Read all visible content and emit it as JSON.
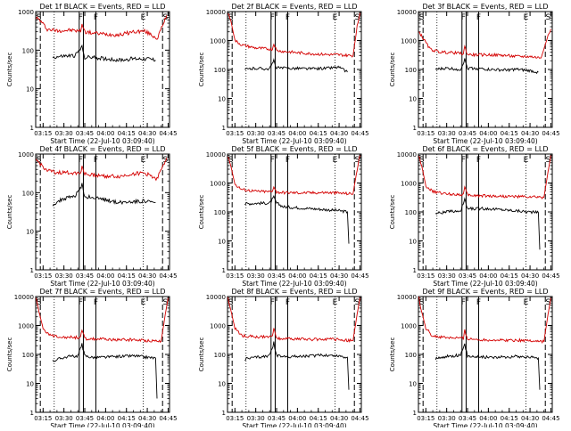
{
  "colors": {
    "events": "#000000",
    "lld": "#d40000",
    "frame": "#000000"
  },
  "chart_data": [
    {
      "type": "line",
      "title": "Det 1f BLACK = Events, RED = LLD",
      "xlabel": "Start Time (22-Jul-10 03:09:40)",
      "ylabel": "Counts/sec",
      "ylim": [
        1,
        1000
      ],
      "yscale": "log",
      "yticks": [
        "1",
        "10",
        "100",
        "1000"
      ],
      "xticks": [
        "03:15",
        "03:30",
        "03:45",
        "04:00",
        "04:15",
        "04:30",
        "04:45"
      ],
      "markers": [
        "S",
        "F",
        "F",
        "E",
        "S"
      ],
      "series": [
        {
          "name": "LLD",
          "x": [
            "03:10",
            "03:13",
            "03:18",
            "03:25",
            "03:35",
            "03:42",
            "03:43",
            "03:45",
            "03:50",
            "04:00",
            "04:10",
            "04:20",
            "04:28",
            "04:33",
            "04:37",
            "04:41",
            "04:44"
          ],
          "y": [
            700,
            580,
            350,
            320,
            330,
            310,
            480,
            300,
            280,
            260,
            250,
            300,
            310,
            250,
            200,
            420,
            800
          ]
        },
        {
          "name": "Events",
          "x": [
            "03:22",
            "03:30",
            "03:38",
            "03:43",
            "03:45",
            "03:50",
            "04:00",
            "04:10",
            "04:20",
            "04:30",
            "04:36"
          ],
          "y": [
            65,
            70,
            72,
            120,
            65,
            65,
            60,
            55,
            60,
            60,
            55
          ]
        }
      ]
    },
    {
      "type": "line",
      "title": "Det 2f BLACK = Events, RED = LLD",
      "xlabel": "Start Time (22-Jul-10 03:09:40)",
      "ylabel": "Counts/sec",
      "ylim": [
        1,
        10000
      ],
      "yscale": "log",
      "yticks": [
        "1",
        "10",
        "100",
        "1000",
        "10000"
      ],
      "xticks": [
        "03:15",
        "03:30",
        "03:45",
        "04:00",
        "04:15",
        "04:30",
        "04:45"
      ],
      "markers": [
        "S",
        "F",
        "F",
        "E",
        "S"
      ],
      "series": [
        {
          "name": "LLD",
          "x": [
            "03:10",
            "03:12",
            "03:15",
            "03:20",
            "03:30",
            "03:42",
            "03:43",
            "03:45",
            "03:50",
            "04:00",
            "04:10",
            "04:20",
            "04:30",
            "04:40",
            "04:43",
            "04:45"
          ],
          "y": [
            9000,
            5000,
            1000,
            700,
            550,
            500,
            800,
            450,
            420,
            380,
            350,
            330,
            320,
            300,
            3000,
            9000
          ]
        },
        {
          "name": "Events",
          "x": [
            "03:22",
            "03:30",
            "03:40",
            "03:43",
            "03:45",
            "03:50",
            "04:00",
            "04:10",
            "04:20",
            "04:30",
            "04:36"
          ],
          "y": [
            100,
            110,
            105,
            200,
            115,
            110,
            110,
            105,
            110,
            120,
            80
          ]
        }
      ]
    },
    {
      "type": "line",
      "title": "Det 3f BLACK = Events, RED = LLD",
      "xlabel": "Start Time (22-Jul-10 03:09:40)",
      "ylabel": "Counts/sec",
      "ylim": [
        1,
        10000
      ],
      "yscale": "log",
      "yticks": [
        "1",
        "10",
        "100",
        "1000",
        "10000"
      ],
      "xticks": [
        "03:15",
        "03:30",
        "03:45",
        "04:00",
        "04:15",
        "04:30",
        "04:45"
      ],
      "markers": [
        "S",
        "F",
        "F",
        "E",
        "S"
      ],
      "series": [
        {
          "name": "LLD",
          "x": [
            "03:10",
            "03:13",
            "03:18",
            "03:25",
            "03:35",
            "03:42",
            "03:43",
            "03:45",
            "03:50",
            "04:00",
            "04:10",
            "04:20",
            "04:30",
            "04:38",
            "04:43",
            "04:45"
          ],
          "y": [
            2000,
            1200,
            500,
            400,
            380,
            350,
            600,
            330,
            320,
            320,
            310,
            280,
            280,
            250,
            1500,
            2500
          ]
        },
        {
          "name": "Events",
          "x": [
            "03:22",
            "03:30",
            "03:40",
            "03:43",
            "03:45",
            "03:50",
            "04:00",
            "04:10",
            "04:20",
            "04:30",
            "04:36"
          ],
          "y": [
            100,
            110,
            100,
            220,
            110,
            110,
            100,
            95,
            100,
            90,
            80
          ]
        }
      ]
    },
    {
      "type": "line",
      "title": "Det 4f BLACK = Events, RED = LLD",
      "xlabel": "Start Time (22-Jul-10 03:09:40)",
      "ylabel": "Counts/sec",
      "ylim": [
        1,
        1000
      ],
      "yscale": "log",
      "yticks": [
        "1",
        "10",
        "100",
        "1000"
      ],
      "xticks": [
        "03:15",
        "03:30",
        "03:45",
        "04:00",
        "04:15",
        "04:30",
        "04:45"
      ],
      "markers": [
        "S",
        "F",
        "F",
        "E",
        "S"
      ],
      "series": [
        {
          "name": "LLD",
          "x": [
            "03:10",
            "03:13",
            "03:18",
            "03:25",
            "03:35",
            "03:42",
            "03:43",
            "03:45",
            "03:50",
            "04:00",
            "04:10",
            "04:20",
            "04:28",
            "04:33",
            "04:37",
            "04:41",
            "04:44"
          ],
          "y": [
            700,
            550,
            370,
            330,
            330,
            320,
            500,
            300,
            290,
            270,
            260,
            310,
            320,
            270,
            230,
            450,
            800
          ]
        },
        {
          "name": "Events",
          "x": [
            "03:22",
            "03:30",
            "03:38",
            "03:43",
            "03:45",
            "03:50",
            "04:00",
            "04:10",
            "04:20",
            "04:30",
            "04:36"
          ],
          "y": [
            50,
            70,
            80,
            160,
            80,
            75,
            65,
            55,
            60,
            60,
            55
          ]
        }
      ]
    },
    {
      "type": "line",
      "title": "Det 5f BLACK = Events, RED = LLD",
      "xlabel": "Start Time (22-Jul-10 03:09:40)",
      "ylabel": "Counts/sec",
      "ylim": [
        1,
        10000
      ],
      "yscale": "log",
      "yticks": [
        "1",
        "10",
        "100",
        "1000",
        "10000"
      ],
      "xticks": [
        "03:15",
        "03:30",
        "03:45",
        "04:00",
        "04:15",
        "04:30",
        "04:45"
      ],
      "markers": [
        "S",
        "F",
        "F",
        "E",
        "S"
      ],
      "series": [
        {
          "name": "LLD",
          "x": [
            "03:10",
            "03:12",
            "03:15",
            "03:20",
            "03:30",
            "03:42",
            "03:43",
            "03:45",
            "03:50",
            "04:00",
            "04:10",
            "04:20",
            "04:30",
            "04:40",
            "04:43",
            "04:45"
          ],
          "y": [
            9000,
            4000,
            900,
            600,
            520,
            500,
            800,
            480,
            470,
            460,
            460,
            470,
            450,
            420,
            3000,
            9000
          ]
        },
        {
          "name": "Events",
          "x": [
            "03:22",
            "03:30",
            "03:40",
            "03:43",
            "03:45",
            "03:50",
            "04:00",
            "04:10",
            "04:20",
            "04:30",
            "04:36",
            "04:37"
          ],
          "y": [
            190,
            200,
            200,
            320,
            200,
            150,
            140,
            130,
            120,
            110,
            100,
            8
          ]
        }
      ]
    },
    {
      "type": "line",
      "title": "Det 6f BLACK = Events, RED = LLD",
      "xlabel": "Start Time (22-Jul-10 03:09:40)",
      "ylabel": "Counts/sec",
      "ylim": [
        1,
        10000
      ],
      "yscale": "log",
      "yticks": [
        "1",
        "10",
        "100",
        "1000",
        "10000"
      ],
      "xticks": [
        "03:15",
        "03:30",
        "03:45",
        "04:00",
        "04:15",
        "04:30",
        "04:45"
      ],
      "markers": [
        "S",
        "F",
        "F",
        "E",
        "S"
      ],
      "series": [
        {
          "name": "LLD",
          "x": [
            "03:10",
            "03:12",
            "03:15",
            "03:20",
            "03:30",
            "03:42",
            "03:43",
            "03:45",
            "03:50",
            "04:00",
            "04:10",
            "04:20",
            "04:30",
            "04:40",
            "04:43",
            "04:45"
          ],
          "y": [
            9000,
            4000,
            800,
            500,
            420,
            400,
            700,
            380,
            370,
            360,
            350,
            340,
            330,
            320,
            2500,
            9000
          ]
        },
        {
          "name": "Events",
          "x": [
            "03:22",
            "03:30",
            "03:40",
            "03:43",
            "03:45",
            "03:50",
            "04:00",
            "04:10",
            "04:20",
            "04:30",
            "04:36",
            "04:37"
          ],
          "y": [
            90,
            100,
            110,
            260,
            130,
            130,
            130,
            120,
            110,
            100,
            95,
            5
          ]
        }
      ]
    },
    {
      "type": "line",
      "title": "Det 7f BLACK = Events, RED = LLD",
      "xlabel": "Start Time (22-Jul-10 03:09:40)",
      "ylabel": "Counts/sec",
      "ylim": [
        1,
        10000
      ],
      "yscale": "log",
      "yticks": [
        "1",
        "10",
        "100",
        "1000",
        "10000"
      ],
      "xticks": [
        "03:15",
        "03:30",
        "03:45",
        "04:00",
        "04:15",
        "04:30",
        "04:45"
      ],
      "markers": [
        "S",
        "F",
        "F",
        "E",
        "S"
      ],
      "series": [
        {
          "name": "LLD",
          "x": [
            "03:10",
            "03:12",
            "03:15",
            "03:20",
            "03:30",
            "03:42",
            "03:43",
            "03:45",
            "03:50",
            "04:00",
            "04:10",
            "04:20",
            "04:30",
            "04:40",
            "04:43",
            "04:45"
          ],
          "y": [
            9000,
            3000,
            800,
            450,
            400,
            380,
            700,
            350,
            340,
            330,
            320,
            320,
            300,
            290,
            2500,
            9000
          ]
        },
        {
          "name": "Events",
          "x": [
            "03:22",
            "03:30",
            "03:40",
            "03:43",
            "03:45",
            "03:50",
            "04:00",
            "04:10",
            "04:20",
            "04:30",
            "04:36",
            "04:37"
          ],
          "y": [
            60,
            80,
            90,
            220,
            90,
            80,
            80,
            85,
            90,
            80,
            75,
            3
          ]
        }
      ]
    },
    {
      "type": "line",
      "title": "Det 8f BLACK = Events, RED = LLD",
      "xlabel": "Start Time (22-Jul-10 03:09:40)",
      "ylabel": "Counts/sec",
      "ylim": [
        1,
        10000
      ],
      "yscale": "log",
      "yticks": [
        "1",
        "10",
        "100",
        "1000",
        "10000"
      ],
      "xticks": [
        "03:15",
        "03:30",
        "03:45",
        "04:00",
        "04:15",
        "04:30",
        "04:45"
      ],
      "markers": [
        "S",
        "F",
        "F",
        "E",
        "S"
      ],
      "series": [
        {
          "name": "LLD",
          "x": [
            "03:10",
            "03:12",
            "03:15",
            "03:20",
            "03:30",
            "03:42",
            "03:43",
            "03:45",
            "03:50",
            "04:00",
            "04:10",
            "04:20",
            "04:30",
            "04:40",
            "04:43",
            "04:45"
          ],
          "y": [
            9000,
            3500,
            800,
            450,
            400,
            400,
            900,
            360,
            350,
            340,
            330,
            340,
            320,
            300,
            2500,
            9000
          ]
        },
        {
          "name": "Events",
          "x": [
            "03:22",
            "03:30",
            "03:40",
            "03:43",
            "03:45",
            "03:50",
            "04:00",
            "04:10",
            "04:20",
            "04:30",
            "04:36",
            "04:37"
          ],
          "y": [
            70,
            80,
            90,
            250,
            90,
            85,
            85,
            90,
            95,
            90,
            80,
            6
          ]
        }
      ]
    },
    {
      "type": "line",
      "title": "Det 9f BLACK = Events, RED = LLD",
      "xlabel": "Start Time (22-Jul-10 03:09:40)",
      "ylabel": "Counts/sec",
      "ylim": [
        1,
        10000
      ],
      "yscale": "log",
      "yticks": [
        "1",
        "10",
        "100",
        "1000",
        "10000"
      ],
      "xticks": [
        "03:15",
        "03:30",
        "03:45",
        "04:00",
        "04:15",
        "04:30",
        "04:45"
      ],
      "markers": [
        "S",
        "F",
        "F",
        "E",
        "S"
      ],
      "series": [
        {
          "name": "LLD",
          "x": [
            "03:10",
            "03:12",
            "03:15",
            "03:20",
            "03:30",
            "03:42",
            "03:43",
            "03:45",
            "03:50",
            "04:00",
            "04:10",
            "04:20",
            "04:30",
            "04:40",
            "04:43",
            "04:45"
          ],
          "y": [
            9000,
            3000,
            800,
            420,
            380,
            360,
            700,
            340,
            330,
            320,
            310,
            310,
            300,
            280,
            2500,
            9000
          ]
        },
        {
          "name": "Events",
          "x": [
            "03:22",
            "03:30",
            "03:40",
            "03:43",
            "03:45",
            "03:50",
            "04:00",
            "04:10",
            "04:20",
            "04:30",
            "04:36",
            "04:37"
          ],
          "y": [
            70,
            85,
            95,
            210,
            90,
            85,
            80,
            80,
            85,
            80,
            75,
            6
          ]
        }
      ]
    }
  ]
}
